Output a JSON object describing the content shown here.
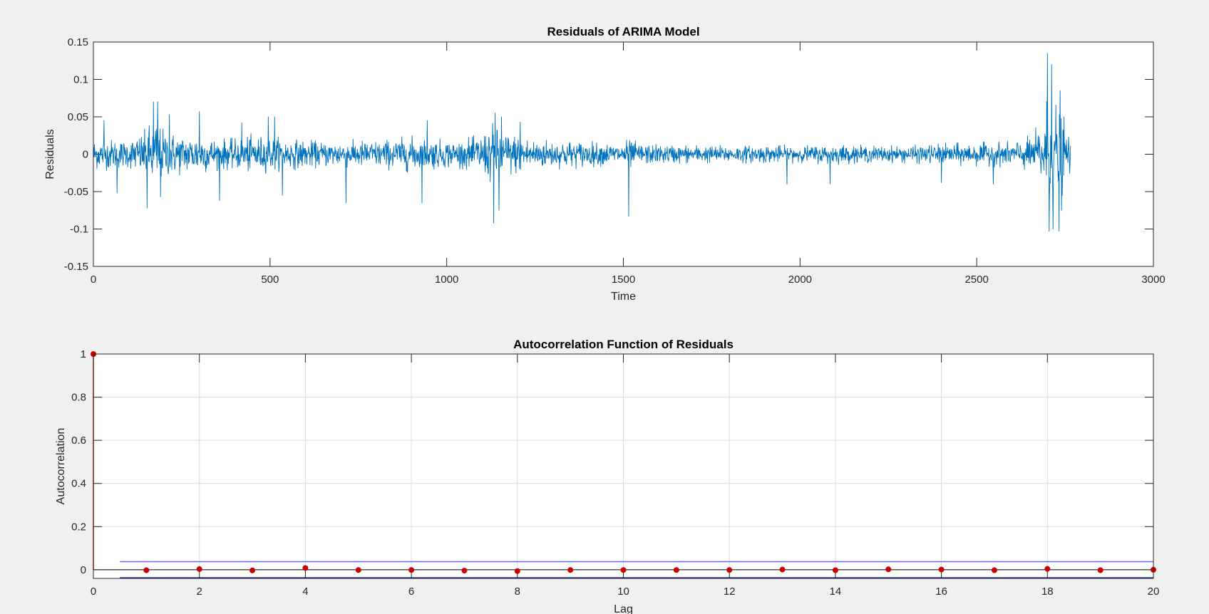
{
  "chart_data": [
    {
      "type": "line",
      "title": "Residuals of ARIMA Model",
      "xlabel": "Time",
      "ylabel": "Residuals",
      "xlim": [
        0,
        3000
      ],
      "ylim": [
        -0.15,
        0.15
      ],
      "xticks": [
        0,
        500,
        1000,
        1500,
        2000,
        2500,
        3000
      ],
      "xtick_labels": [
        "0",
        "500",
        "1000",
        "1500",
        "2000",
        "2500",
        "3000"
      ],
      "yticks": [
        -0.15,
        -0.1,
        -0.05,
        0,
        0.05,
        0.1,
        0.15
      ],
      "ytick_labels": [
        "-0.15",
        "-0.1",
        "-0.05",
        "0",
        "0.05",
        "0.1",
        "0.15"
      ],
      "grid": false,
      "series": [
        {
          "color": "#0072bd",
          "n_points": 2767,
          "envelope": {
            "x": [
              0,
              50,
              100,
              150,
              160,
              175,
              200,
              250,
              300,
              350,
              400,
              450,
              500,
              550,
              600,
              650,
              700,
              750,
              800,
              850,
              900,
              950,
              1000,
              1050,
              1100,
              1130,
              1150,
              1200,
              1250,
              1300,
              1350,
              1400,
              1450,
              1500,
              1515,
              1550,
              1600,
              1700,
              1800,
              1900,
              2000,
              2100,
              2200,
              2300,
              2400,
              2500,
              2600,
              2650,
              2690,
              2700,
              2710,
              2720,
              2730,
              2740,
              2750,
              2767
            ],
            "amplitude": [
              0.022,
              0.022,
              0.02,
              0.035,
              0.045,
              0.05,
              0.035,
              0.028,
              0.028,
              0.022,
              0.022,
              0.028,
              0.025,
              0.022,
              0.02,
              0.018,
              0.02,
              0.02,
              0.02,
              0.022,
              0.025,
              0.022,
              0.02,
              0.02,
              0.03,
              0.042,
              0.035,
              0.028,
              0.022,
              0.02,
              0.02,
              0.018,
              0.016,
              0.015,
              0.022,
              0.015,
              0.014,
              0.013,
              0.012,
              0.013,
              0.012,
              0.014,
              0.012,
              0.012,
              0.015,
              0.016,
              0.018,
              0.025,
              0.05,
              0.08,
              0.085,
              0.08,
              0.07,
              0.06,
              0.035,
              0.025
            ]
          },
          "spikes": [
            {
              "x": 30,
              "y": 0.045
            },
            {
              "x": 67,
              "y": -0.052
            },
            {
              "x": 152,
              "y": -0.072
            },
            {
              "x": 170,
              "y": 0.07
            },
            {
              "x": 182,
              "y": 0.07
            },
            {
              "x": 190,
              "y": -0.057
            },
            {
              "x": 215,
              "y": 0.053
            },
            {
              "x": 300,
              "y": 0.057
            },
            {
              "x": 357,
              "y": -0.062
            },
            {
              "x": 420,
              "y": 0.042
            },
            {
              "x": 495,
              "y": 0.05
            },
            {
              "x": 513,
              "y": 0.05
            },
            {
              "x": 535,
              "y": -0.055
            },
            {
              "x": 715,
              "y": -0.065
            },
            {
              "x": 930,
              "y": -0.065
            },
            {
              "x": 945,
              "y": 0.045
            },
            {
              "x": 1133,
              "y": -0.092
            },
            {
              "x": 1137,
              "y": 0.055
            },
            {
              "x": 1148,
              "y": -0.075
            },
            {
              "x": 1155,
              "y": 0.05
            },
            {
              "x": 1208,
              "y": 0.043
            },
            {
              "x": 1515,
              "y": -0.083
            },
            {
              "x": 1963,
              "y": -0.04
            },
            {
              "x": 2085,
              "y": -0.04
            },
            {
              "x": 2400,
              "y": -0.038
            },
            {
              "x": 2547,
              "y": -0.04
            },
            {
              "x": 2700,
              "y": 0.135
            },
            {
              "x": 2705,
              "y": -0.103
            },
            {
              "x": 2712,
              "y": 0.12
            },
            {
              "x": 2716,
              "y": -0.1
            },
            {
              "x": 2733,
              "y": -0.103
            },
            {
              "x": 2736,
              "y": 0.085
            },
            {
              "x": 2740,
              "y": -0.075
            },
            {
              "x": 2747,
              "y": 0.05
            }
          ]
        }
      ]
    },
    {
      "type": "stem",
      "title": "Autocorrelation Function of Residuals",
      "xlabel": "Lag",
      "ylabel": "Autocorrelation",
      "xlim": [
        0,
        20
      ],
      "ylim": [
        -0.04,
        1
      ],
      "xticks": [
        0,
        2,
        4,
        6,
        8,
        10,
        12,
        14,
        16,
        18,
        20
      ],
      "xtick_labels": [
        "0",
        "2",
        "4",
        "6",
        "8",
        "10",
        "12",
        "14",
        "16",
        "18",
        "20"
      ],
      "yticks": [
        0,
        0.2,
        0.4,
        0.6,
        0.8,
        1
      ],
      "ytick_labels": [
        "0",
        "0.2",
        "0.4",
        "0.6",
        "0.8",
        "1"
      ],
      "grid": true,
      "lags": [
        0,
        1,
        2,
        3,
        4,
        5,
        6,
        7,
        8,
        9,
        10,
        11,
        12,
        13,
        14,
        15,
        16,
        17,
        18,
        19,
        20
      ],
      "values": [
        1,
        -0.002,
        0.003,
        -0.003,
        0.008,
        -0.001,
        -0.001,
        -0.004,
        -0.006,
        -0.001,
        -0.001,
        -0.001,
        -0.001,
        0.001,
        -0.002,
        0.002,
        0.001,
        -0.002,
        0.004,
        -0.002,
        0
      ],
      "stem_color": "#ff0000",
      "marker_color": "#cc0000",
      "confidence_bounds": {
        "upper": 0.0375,
        "lower": -0.0375,
        "x_start": 0.5,
        "x_end": 20,
        "upper_color": "#6666ff",
        "lower_color": "#00008b"
      }
    }
  ]
}
